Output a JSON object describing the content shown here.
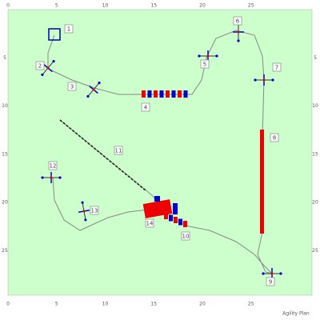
{
  "axes": {
    "x_top": [
      0,
      5,
      10,
      15,
      20,
      25
    ],
    "x_bottom": [
      0,
      5,
      10,
      15,
      20,
      25
    ],
    "y_left": [
      5,
      10,
      15,
      20,
      25
    ],
    "y_right": [
      5,
      10,
      15,
      20,
      25
    ]
  },
  "obstacles": [
    {
      "label": "1"
    },
    {
      "label": "2"
    },
    {
      "label": "3"
    },
    {
      "label": "4"
    },
    {
      "label": "5"
    },
    {
      "label": "6"
    },
    {
      "label": "7"
    },
    {
      "label": "8"
    },
    {
      "label": "9"
    },
    {
      "label": "10"
    },
    {
      "label": "11"
    },
    {
      "label": "12"
    },
    {
      "label": "13"
    },
    {
      "label": "14"
    }
  ],
  "footer": "Agility Plan"
}
